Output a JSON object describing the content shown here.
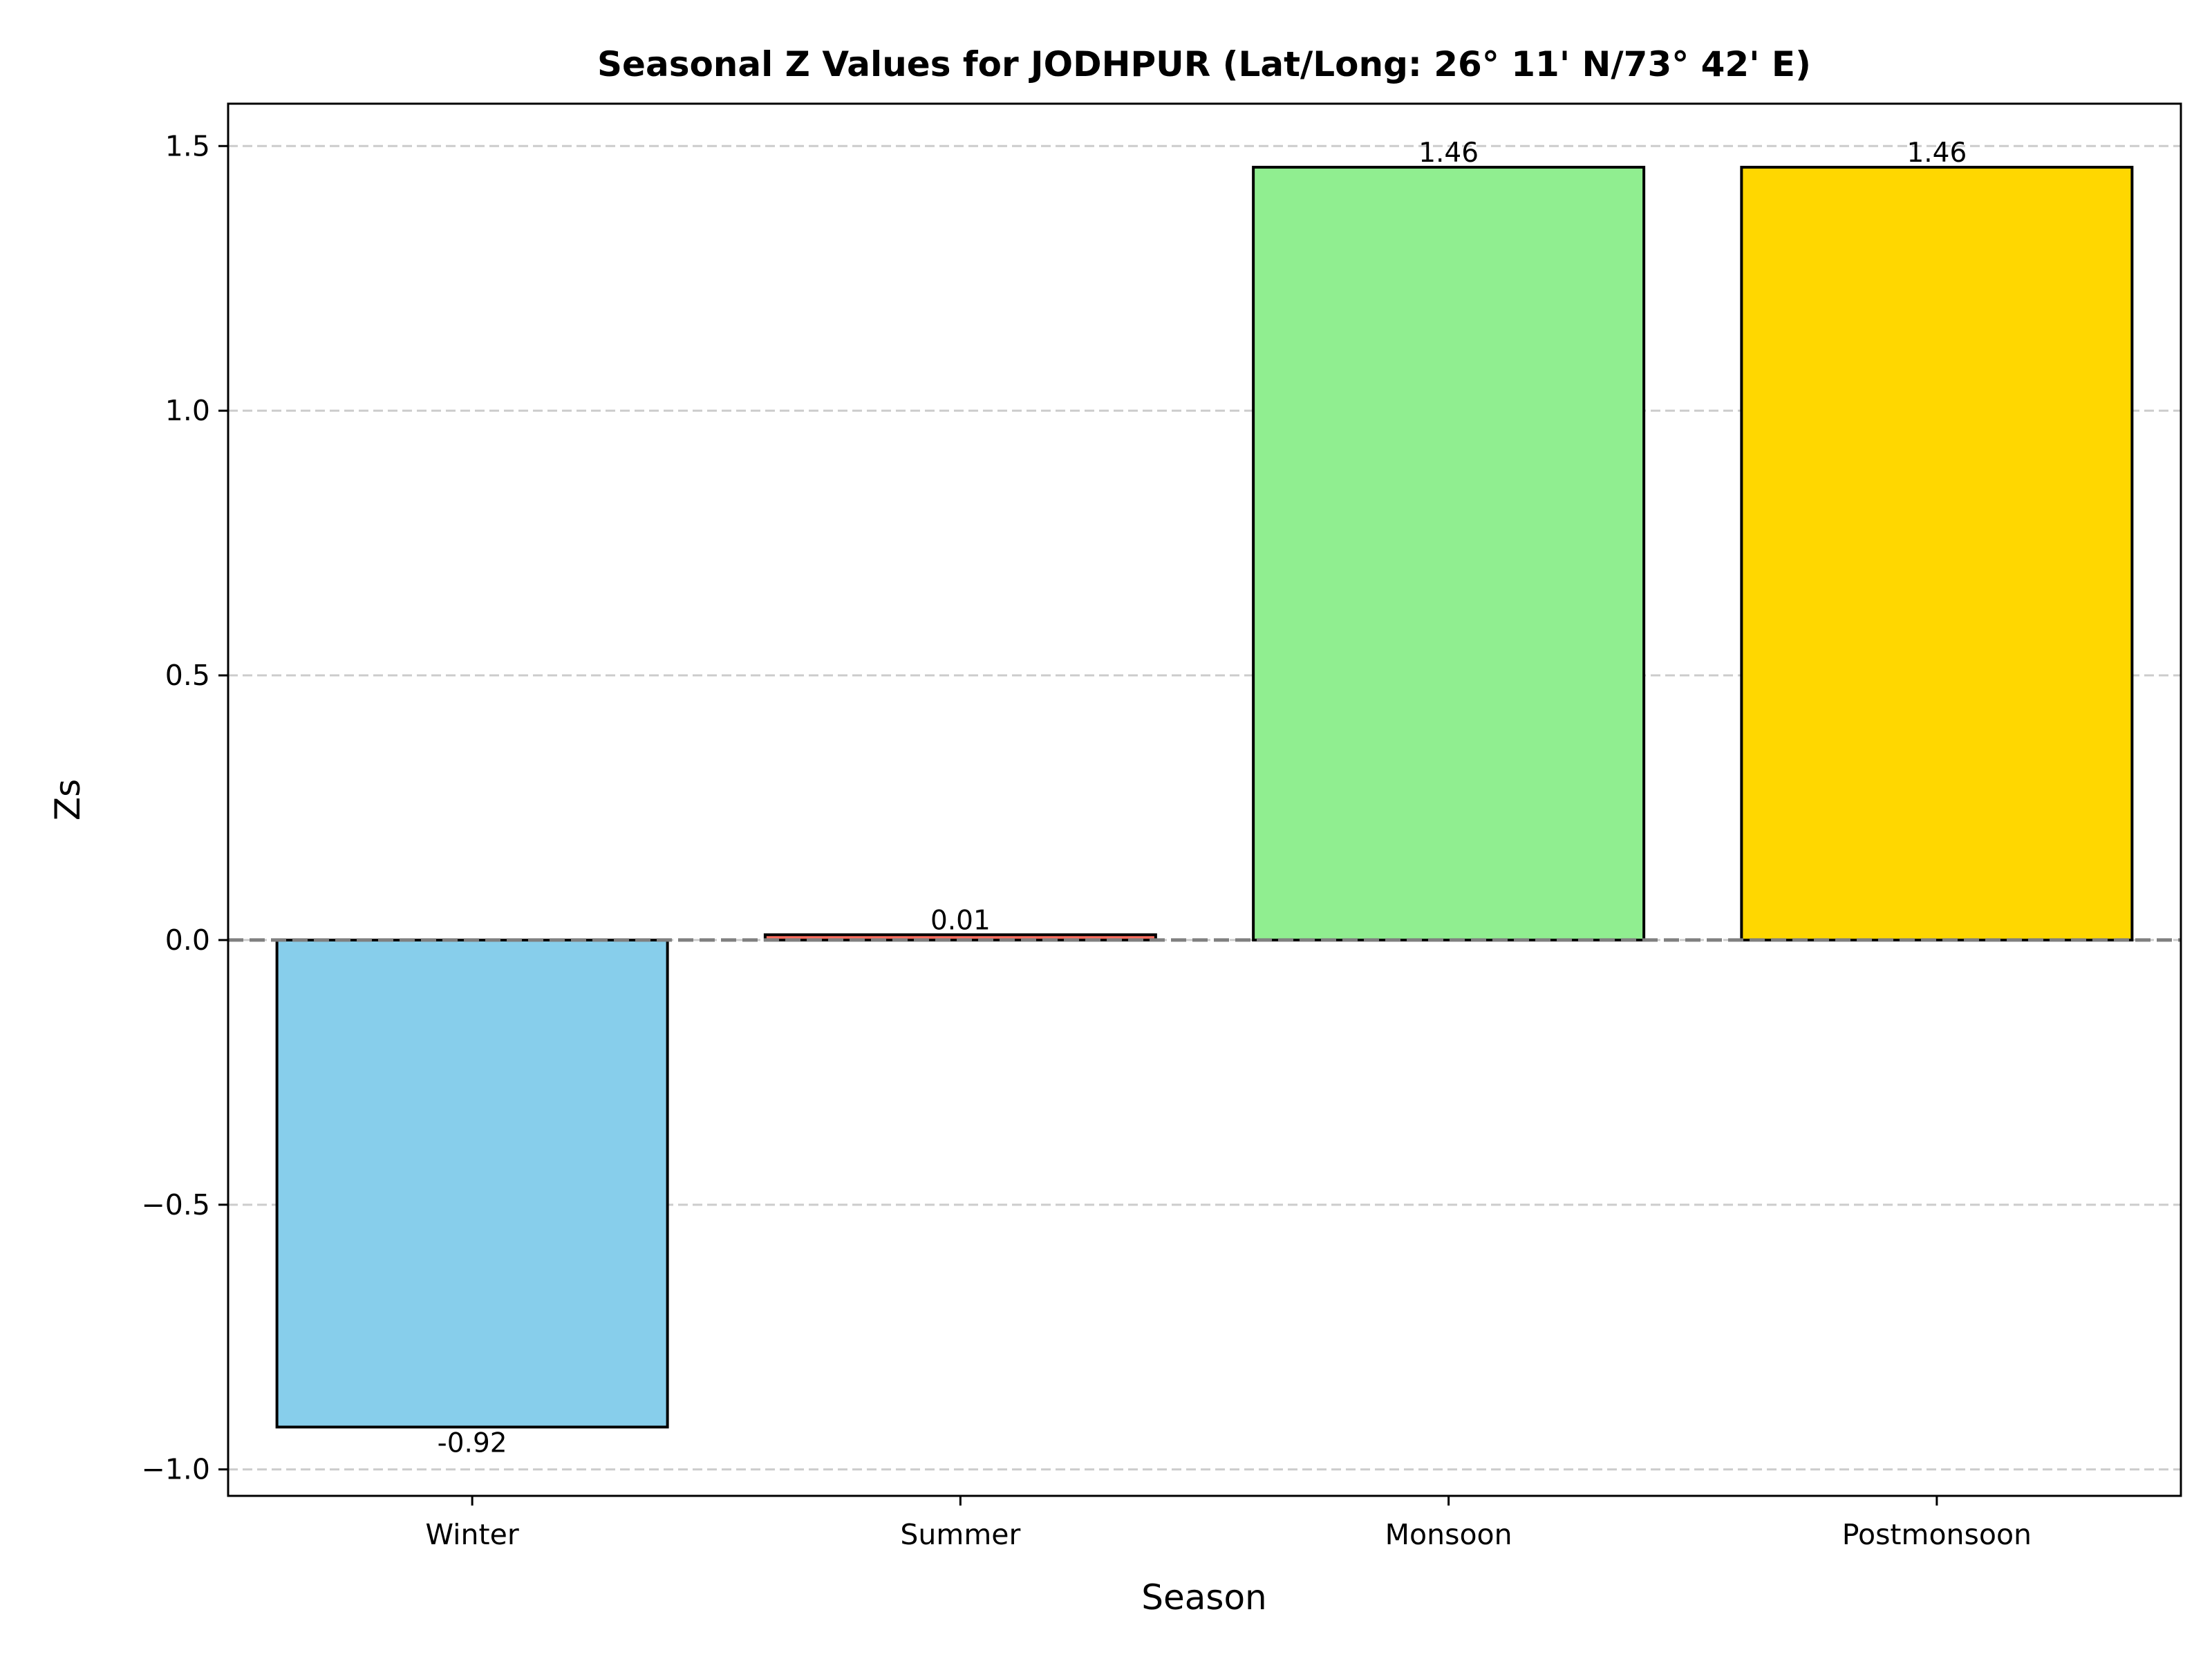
{
  "chart_data": {
    "type": "bar",
    "title": "Seasonal Z Values for JODHPUR (Lat/Long: 26° 11' N/73° 42' E)",
    "xlabel": "Season",
    "ylabel": "Zs",
    "categories": [
      "Winter",
      "Summer",
      "Monsoon",
      "Postmonsoon"
    ],
    "values": [
      -0.92,
      0.01,
      1.46,
      1.46
    ],
    "data_labels": [
      "-0.92",
      "0.01",
      "1.46",
      "1.46"
    ],
    "bar_colors": [
      "#87CEEB",
      "#FF6F61",
      "#90EE90",
      "#FFD700"
    ],
    "edge_color": "#000000",
    "ylim": [
      -1.05,
      1.58
    ],
    "yticks": [
      -1.0,
      -0.5,
      0.0,
      0.5,
      1.0,
      1.5
    ],
    "ytick_labels": [
      "−1.0",
      "−0.5",
      "0.0",
      "0.5",
      "1.0",
      "1.5"
    ],
    "grid": "horizontal dashed",
    "zero_line": "dashed gray at y = 0"
  }
}
